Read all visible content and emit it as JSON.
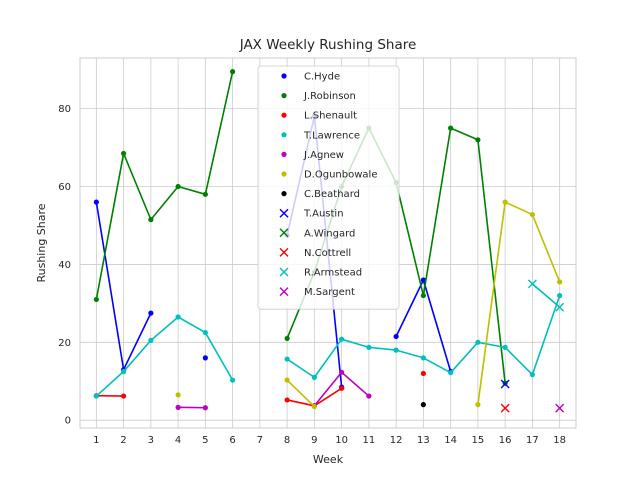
{
  "chart_data": {
    "type": "line",
    "title": "JAX Weekly Rushing Share",
    "xlabel": "Week",
    "ylabel": "Rushing Share",
    "xlim": [
      0.4,
      18.6
    ],
    "ylim": [
      -2,
      93
    ],
    "x_ticks": [
      1,
      2,
      3,
      4,
      5,
      6,
      7,
      8,
      9,
      10,
      11,
      12,
      13,
      14,
      15,
      16,
      17,
      18
    ],
    "y_ticks": [
      0,
      20,
      40,
      60,
      80
    ],
    "grid": true,
    "legend_position": "upper center",
    "series": [
      {
        "name": "C.Hyde",
        "color": "#0000ff",
        "marker": "dot",
        "x": [
          1,
          2,
          3,
          5,
          8,
          9,
          10,
          12,
          13,
          14
        ],
        "y": [
          56,
          13,
          27.5,
          16,
          47.5,
          78,
          8.5,
          21.5,
          36,
          12.5
        ]
      },
      {
        "name": "J.Robinson",
        "color": "#008000",
        "marker": "dot",
        "x": [
          1,
          2,
          3,
          4,
          5,
          6,
          8,
          9,
          10,
          11,
          12,
          13,
          14,
          15,
          16
        ],
        "y": [
          31,
          68.5,
          51.5,
          60,
          58,
          89.5,
          21,
          38,
          60,
          75,
          61,
          32,
          75,
          72,
          9.5
        ]
      },
      {
        "name": "L.Shenault",
        "color": "#ff0000",
        "marker": "dot",
        "x": [
          1,
          2,
          8,
          9,
          10,
          13
        ],
        "y": [
          6.3,
          6.2,
          5.2,
          3.7,
          8.2,
          12
        ]
      },
      {
        "name": "T.Lawrence",
        "color": "#00bfbf",
        "marker": "dot",
        "x": [
          1,
          2,
          3,
          4,
          5,
          6,
          8,
          9,
          10,
          11,
          12,
          13,
          14,
          15,
          16,
          17,
          18
        ],
        "y": [
          6.2,
          12.5,
          20.5,
          26.5,
          22.5,
          10.3,
          15.7,
          11,
          20.8,
          18.7,
          18,
          16,
          12.2,
          20,
          18.7,
          11.7,
          32
        ]
      },
      {
        "name": "J.Agnew",
        "color": "#bf00bf",
        "marker": "dot",
        "x": [
          4,
          5,
          9,
          10,
          11
        ],
        "y": [
          3.3,
          3.2,
          3.7,
          12.3,
          6.2
        ]
      },
      {
        "name": "D.Ogunbowale",
        "color": "#bfbf00",
        "marker": "dot",
        "x": [
          4,
          8,
          9,
          15,
          16,
          17,
          18
        ],
        "y": [
          6.5,
          10.3,
          3.5,
          4,
          56,
          52.8,
          35.5
        ]
      },
      {
        "name": "C.Beathard",
        "color": "#000000",
        "marker": "dot",
        "x": [
          13
        ],
        "y": [
          4
        ]
      },
      {
        "name": "T.Austin",
        "color": "#0000ff",
        "marker": "x",
        "x": [
          16
        ],
        "y": [
          9.3
        ]
      },
      {
        "name": "A.Wingard",
        "color": "#008000",
        "marker": "x",
        "x": [],
        "y": []
      },
      {
        "name": "N.Cottrell",
        "color": "#ff0000",
        "marker": "x",
        "x": [
          16
        ],
        "y": [
          3.1
        ]
      },
      {
        "name": "R.Armstead",
        "color": "#00bfbf",
        "marker": "x",
        "x": [
          17,
          18
        ],
        "y": [
          35,
          29
        ]
      },
      {
        "name": "M.Sargent",
        "color": "#bf00bf",
        "marker": "x",
        "x": [
          18
        ],
        "y": [
          3.1
        ]
      }
    ]
  }
}
